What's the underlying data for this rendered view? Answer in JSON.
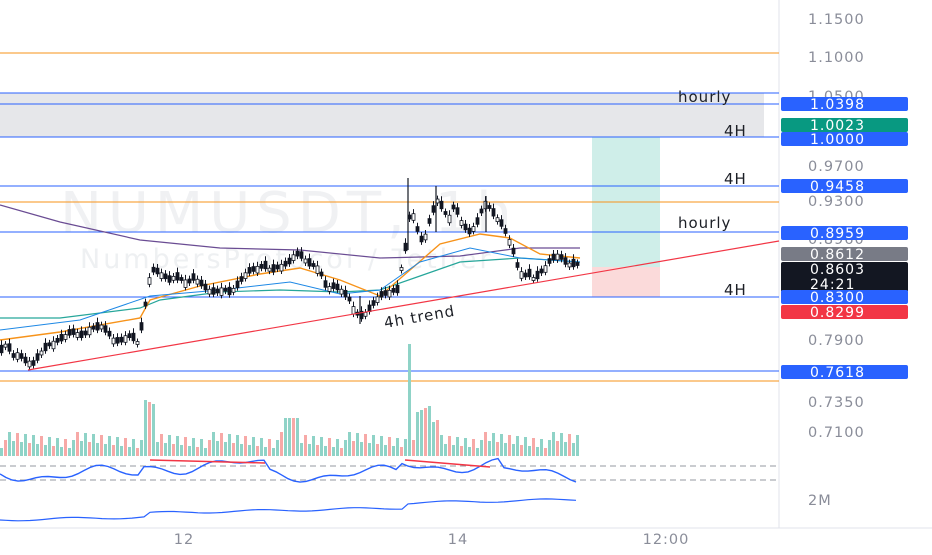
{
  "watermark": {
    "symbol": "NUMUSDT, 1h",
    "name": "NumbersProtocol / Tether"
  },
  "price_axis": {
    "labels": [
      "1.1500",
      "1.1000",
      "1.0500",
      "0.9700",
      "0.9300",
      "0.8960",
      "0.7900",
      "0.7350",
      "0.7100"
    ],
    "volume_label": "2M"
  },
  "time_axis": {
    "labels": [
      "12",
      "14",
      "12:00"
    ]
  },
  "price_tags": [
    {
      "text": "1.0398",
      "color": "#2962ff"
    },
    {
      "text": "1.0023",
      "color": "#089981"
    },
    {
      "text": "1.0000",
      "color": "#2962ff"
    },
    {
      "text": "0.9458",
      "color": "#2962ff"
    },
    {
      "text": "0.8959",
      "color": "#2962ff"
    },
    {
      "text": "0.8612",
      "color": "#787b86"
    },
    {
      "text": "0.8603",
      "color": "#131722",
      "sub": "24:21"
    },
    {
      "text": "0.8300",
      "color": "#2962ff"
    },
    {
      "text": "0.8299",
      "color": "#f23645"
    },
    {
      "text": "0.7618",
      "color": "#2962ff"
    }
  ],
  "annotations": {
    "hourly_top": "hourly",
    "h4_a": "4H",
    "h4_b": "4H",
    "hourly_mid": "hourly",
    "h4_c": "4H",
    "trend": "4h trend"
  },
  "colors": {
    "level_blue": "#2962ff",
    "level_orange": "#f7931a",
    "up": "#131722",
    "vol_up": "#8fd3c7",
    "vol_down": "#f7a9a7",
    "trendline": "#f23645",
    "ema_fast": "#f7931a",
    "ema_mid": "#26a69a",
    "ema_slow": "#6a4c93"
  },
  "chart_data": {
    "type": "candlestick",
    "symbol": "NUMUSDT",
    "timeframe": "1h",
    "y_axis_ticks": [
      1.15,
      1.1,
      1.05,
      0.97,
      0.93,
      0.896,
      0.79,
      0.735,
      0.71
    ],
    "horizontal_levels": [
      {
        "price": 1.1035,
        "color": "orange"
      },
      {
        "price": 1.0398,
        "color": "blue",
        "label": "hourly"
      },
      {
        "price": 1.0,
        "color": "blue",
        "label": "4H"
      },
      {
        "price": 0.9458,
        "color": "blue",
        "label": "4H"
      },
      {
        "price": 0.928,
        "color": "orange"
      },
      {
        "price": 0.8959,
        "color": "blue",
        "label": "hourly"
      },
      {
        "price": 0.83,
        "color": "blue",
        "label": "4H"
      },
      {
        "price": 0.7618,
        "color": "blue"
      },
      {
        "price": 0.7525,
        "color": "orange"
      }
    ],
    "resistance_zone": [
      1.0,
      1.0398
    ],
    "position": {
      "entry": 0.8603,
      "target": 1.0,
      "stop": 0.8299
    },
    "last_price": 0.8603,
    "countdown": "24:21",
    "trendline_label": "4h trend"
  }
}
